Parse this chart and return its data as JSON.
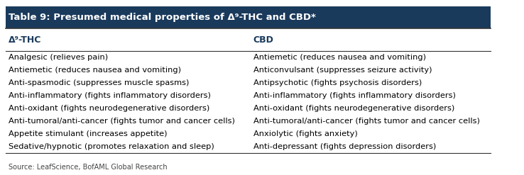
{
  "title": "Table 9: Presumed medical properties of Δ⁹-THC and CBD*",
  "col1_header": "Δ⁹-THC",
  "col2_header": "CBD",
  "col1_data": [
    "Analgesic (relieves pain)",
    "Antiemetic (reduces nausea and vomiting)",
    "Anti-spasmodic (suppresses muscle spasms)",
    "Anti-inflammatory (fights inflammatory disorders)",
    "Anti-oxidant (fights neurodegenerative disorders)",
    "Anti-tumoral/anti-cancer (fights tumor and cancer cells)",
    "Appetite stimulant (increases appetite)",
    "Sedative/hypnotic (promotes relaxation and sleep)"
  ],
  "col2_data": [
    "Antiemetic (reduces nausea and vomiting)",
    "Anticonvulsant (suppresses seizure activity)",
    "Antipsychotic (fights psychosis disorders)",
    "Anti-inflammatory (fights inflammatory disorders)",
    "Anti-oxidant (fights neurodegenerative disorders)",
    "Anti-tumoral/anti-cancer (fights tumor and cancer cells)",
    "Anxiolytic (fights anxiety)",
    "Anti-depressant (fights depression disorders)"
  ],
  "source": "Source: LeafScience, BofAML Global Research",
  "title_bg": "#1a3a5c",
  "title_color": "#ffffff",
  "header_color": "#1a3a5c",
  "body_color": "#000000",
  "bg_color": "#ffffff",
  "border_color": "#333333",
  "title_fontsize": 9.5,
  "header_fontsize": 9,
  "body_fontsize": 8.2,
  "source_fontsize": 7
}
